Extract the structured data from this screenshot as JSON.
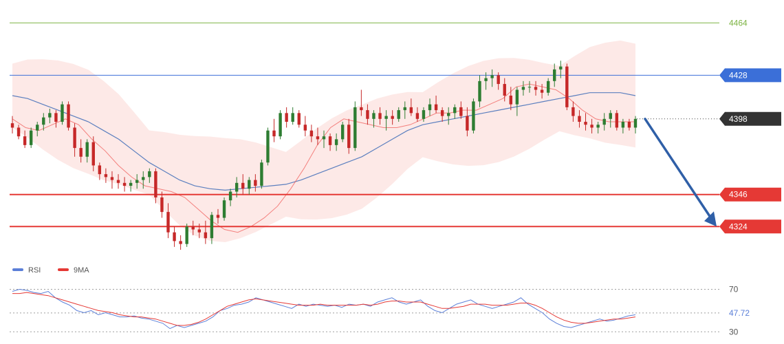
{
  "chart_data": [
    {
      "type": "candlestick",
      "ylim": [
        4300,
        4475
      ],
      "colors": {
        "up": "#2e7d32",
        "down": "#c62828",
        "band_fill": "#fde3e1",
        "ma_fast": "#ef5350",
        "ma_slow": "#5b7fbf"
      },
      "levels": [
        {
          "value": 4464,
          "label": "4464",
          "color": "#7cb342",
          "role": "target-top"
        },
        {
          "value": 4428,
          "label": "4428",
          "color": "#3b6fd8",
          "role": "resistance"
        },
        {
          "value": 4398,
          "label": "4398",
          "color": "#333333",
          "role": "current-price"
        },
        {
          "value": 4346,
          "label": "4346",
          "color": "#e53935",
          "role": "support"
        },
        {
          "value": 4324,
          "label": "4324",
          "color": "#e53935",
          "role": "support"
        }
      ],
      "arrow": {
        "from": 4398,
        "to": 4324,
        "direction": "down",
        "color": "#2f5fa7"
      },
      "series": [
        {
          "name": "ohlc",
          "values": [
            [
              4395,
              4400,
              4388,
              4392
            ],
            [
              4392,
              4394,
              4384,
              4386
            ],
            [
              4386,
              4390,
              4378,
              4380
            ],
            [
              4380,
              4392,
              4378,
              4390
            ],
            [
              4390,
              4396,
              4386,
              4394
            ],
            [
              4394,
              4402,
              4390,
              4399
            ],
            [
              4399,
              4405,
              4395,
              4402
            ],
            [
              4402,
              4404,
              4392,
              4396
            ],
            [
              4396,
              4410,
              4394,
              4408
            ],
            [
              4408,
              4410,
              4390,
              4392
            ],
            [
              4392,
              4395,
              4372,
              4378
            ],
            [
              4378,
              4384,
              4368,
              4372
            ],
            [
              4372,
              4384,
              4368,
              4382
            ],
            [
              4382,
              4386,
              4362,
              4366
            ],
            [
              4366,
              4368,
              4356,
              4360
            ],
            [
              4360,
              4364,
              4354,
              4358
            ],
            [
              4358,
              4362,
              4350,
              4356
            ],
            [
              4356,
              4360,
              4350,
              4354
            ],
            [
              4354,
              4358,
              4348,
              4352
            ],
            [
              4352,
              4356,
              4348,
              4354
            ],
            [
              4354,
              4360,
              4350,
              4356
            ],
            [
              4356,
              4362,
              4350,
              4358
            ],
            [
              4358,
              4364,
              4354,
              4362
            ],
            [
              4362,
              4364,
              4340,
              4344
            ],
            [
              4344,
              4348,
              4330,
              4334
            ],
            [
              4334,
              4340,
              4316,
              4320
            ],
            [
              4320,
              4324,
              4310,
              4314
            ],
            [
              4314,
              4318,
              4308,
              4312
            ],
            [
              4312,
              4326,
              4310,
              4324
            ],
            [
              4324,
              4328,
              4318,
              4322
            ],
            [
              4322,
              4326,
              4316,
              4320
            ],
            [
              4320,
              4328,
              4312,
              4316
            ],
            [
              4316,
              4334,
              4312,
              4332
            ],
            [
              4332,
              4336,
              4326,
              4330
            ],
            [
              4330,
              4344,
              4328,
              4342
            ],
            [
              4342,
              4350,
              4338,
              4348
            ],
            [
              4348,
              4358,
              4344,
              4354
            ],
            [
              4354,
              4360,
              4346,
              4350
            ],
            [
              4350,
              4358,
              4346,
              4356
            ],
            [
              4356,
              4360,
              4348,
              4352
            ],
            [
              4352,
              4370,
              4350,
              4368
            ],
            [
              4368,
              4392,
              4366,
              4390
            ],
            [
              4390,
              4398,
              4382,
              4386
            ],
            [
              4386,
              4404,
              4384,
              4402
            ],
            [
              4402,
              4406,
              4392,
              4396
            ],
            [
              4396,
              4406,
              4394,
              4402
            ],
            [
              4402,
              4404,
              4392,
              4394
            ],
            [
              4394,
              4400,
              4386,
              4390
            ],
            [
              4390,
              4394,
              4382,
              4386
            ],
            [
              4386,
              4392,
              4380,
              4384
            ],
            [
              4384,
              4390,
              4378,
              4386
            ],
            [
              4386,
              4388,
              4376,
              4380
            ],
            [
              4380,
              4388,
              4376,
              4384
            ],
            [
              4384,
              4396,
              4382,
              4394
            ],
            [
              4394,
              4398,
              4374,
              4378
            ],
            [
              4378,
              4410,
              4376,
              4406
            ],
            [
              4406,
              4418,
              4400,
              4404
            ],
            [
              4404,
              4408,
              4394,
              4398
            ],
            [
              4398,
              4404,
              4392,
              4402
            ],
            [
              4402,
              4406,
              4394,
              4398
            ],
            [
              4398,
              4404,
              4390,
              4400
            ],
            [
              4400,
              4404,
              4394,
              4398
            ],
            [
              4398,
              4406,
              4396,
              4404
            ],
            [
              4404,
              4410,
              4398,
              4406
            ],
            [
              4406,
              4412,
              4400,
              4402
            ],
            [
              4402,
              4406,
              4396,
              4398
            ],
            [
              4398,
              4406,
              4396,
              4404
            ],
            [
              4404,
              4412,
              4400,
              4408
            ],
            [
              4408,
              4414,
              4402,
              4404
            ],
            [
              4404,
              4406,
              4396,
              4400
            ],
            [
              4400,
              4406,
              4394,
              4402
            ],
            [
              4402,
              4408,
              4398,
              4406
            ],
            [
              4406,
              4410,
              4398,
              4400
            ],
            [
              4400,
              4406,
              4386,
              4390
            ],
            [
              4390,
              4412,
              4388,
              4410
            ],
            [
              4410,
              4428,
              4406,
              4424
            ],
            [
              4424,
              4430,
              4418,
              4426
            ],
            [
              4426,
              4432,
              4420,
              4428
            ],
            [
              4428,
              4430,
              4418,
              4422
            ],
            [
              4422,
              4426,
              4410,
              4414
            ],
            [
              4414,
              4420,
              4404,
              4408
            ],
            [
              4408,
              4420,
              4400,
              4418
            ],
            [
              4418,
              4424,
              4414,
              4420
            ],
            [
              4420,
              4424,
              4416,
              4420
            ],
            [
              4420,
              4424,
              4414,
              4418
            ],
            [
              4418,
              4422,
              4412,
              4416
            ],
            [
              4416,
              4426,
              4414,
              4424
            ],
            [
              4424,
              4436,
              4420,
              4432
            ],
            [
              4432,
              4438,
              4426,
              4434
            ],
            [
              4434,
              4436,
              4404,
              4406
            ],
            [
              4406,
              4410,
              4396,
              4400
            ],
            [
              4400,
              4404,
              4392,
              4396
            ],
            [
              4396,
              4402,
              4390,
              4394
            ],
            [
              4394,
              4398,
              4388,
              4392
            ],
            [
              4392,
              4396,
              4388,
              4394
            ],
            [
              4394,
              4402,
              4390,
              4398
            ],
            [
              4398,
              4404,
              4392,
              4402
            ],
            [
              4402,
              4404,
              4390,
              4392
            ],
            [
              4392,
              4398,
              4388,
              4396
            ],
            [
              4396,
              4398,
              4390,
              4392
            ],
            [
              4392,
              4400,
              4388,
              4398
            ]
          ]
        },
        {
          "name": "ma_fast",
          "values": [
            4398,
            4392,
            4390,
            4394,
            4398,
            4394,
            4384,
            4376,
            4366,
            4358,
            4352,
            4350,
            4348,
            4344,
            4336,
            4328,
            4322,
            4320,
            4324,
            4330,
            4338,
            4350,
            4364,
            4380,
            4392,
            4398,
            4396,
            4394,
            4392,
            4392,
            4394,
            4398,
            4402,
            4402,
            4404,
            4404,
            4408,
            4412,
            4420,
            4422,
            4420,
            4418,
            4412,
            4404,
            4398,
            4396,
            4396,
            4396
          ]
        },
        {
          "name": "ma_slow",
          "values": [
            4414,
            4412,
            4408,
            4404,
            4400,
            4396,
            4390,
            4384,
            4376,
            4368,
            4362,
            4356,
            4352,
            4350,
            4349,
            4350,
            4351,
            4352,
            4353,
            4356,
            4360,
            4364,
            4368,
            4372,
            4378,
            4384,
            4390,
            4394,
            4396,
            4398,
            4400,
            4402,
            4404,
            4406,
            4408,
            4410,
            4412,
            4414,
            4416,
            4416,
            4416,
            4414
          ]
        }
      ]
    },
    {
      "type": "line",
      "ylim": [
        25,
        80
      ],
      "guides": [
        {
          "value": 70,
          "label": "70",
          "color": "#555555"
        },
        {
          "value": 47.72,
          "label": "47.72",
          "color": "#5b7fd8"
        },
        {
          "value": 30,
          "label": "30",
          "color": "#555555"
        }
      ],
      "series": [
        {
          "name": "RSI",
          "color": "#5b7fd8",
          "values": [
            68,
            70,
            69,
            67,
            66,
            68,
            62,
            58,
            55,
            50,
            48,
            50,
            46,
            48,
            46,
            44,
            44,
            45,
            43,
            42,
            40,
            38,
            33,
            36,
            34,
            36,
            38,
            40,
            44,
            50,
            52,
            55,
            56,
            58,
            62,
            60,
            58,
            56,
            54,
            52,
            56,
            54,
            56,
            55,
            54,
            55,
            53,
            56,
            55,
            56,
            54,
            58,
            60,
            62,
            58,
            56,
            58,
            60,
            54,
            50,
            48,
            52,
            56,
            58,
            60,
            56,
            54,
            52,
            54,
            56,
            58,
            62,
            56,
            52,
            48,
            42,
            38,
            35,
            34,
            36,
            38,
            40,
            42,
            40,
            41,
            43,
            45,
            46
          ]
        },
        {
          "name": "9MA",
          "color": "#e53935",
          "values": [
            66,
            66,
            67,
            66,
            65,
            64,
            62,
            60,
            58,
            56,
            54,
            52,
            50,
            49,
            48,
            46,
            45,
            44,
            44,
            43,
            42,
            40,
            38,
            36,
            36,
            37,
            39,
            42,
            46,
            50,
            54,
            56,
            58,
            60,
            61,
            60,
            59,
            58,
            57,
            56,
            55,
            55,
            55,
            56,
            55,
            55,
            55,
            55,
            55,
            56,
            55,
            56,
            58,
            59,
            59,
            58,
            58,
            58,
            56,
            54,
            52,
            52,
            53,
            54,
            56,
            56,
            56,
            55,
            55,
            55,
            56,
            57,
            57,
            55,
            52,
            48,
            44,
            41,
            39,
            38,
            38,
            39,
            40,
            41,
            42,
            42,
            43,
            44
          ]
        }
      ]
    }
  ],
  "legend": [
    {
      "label": "RSI",
      "color": "#5b7fd8"
    },
    {
      "label": "9MA",
      "color": "#e53935"
    }
  ]
}
